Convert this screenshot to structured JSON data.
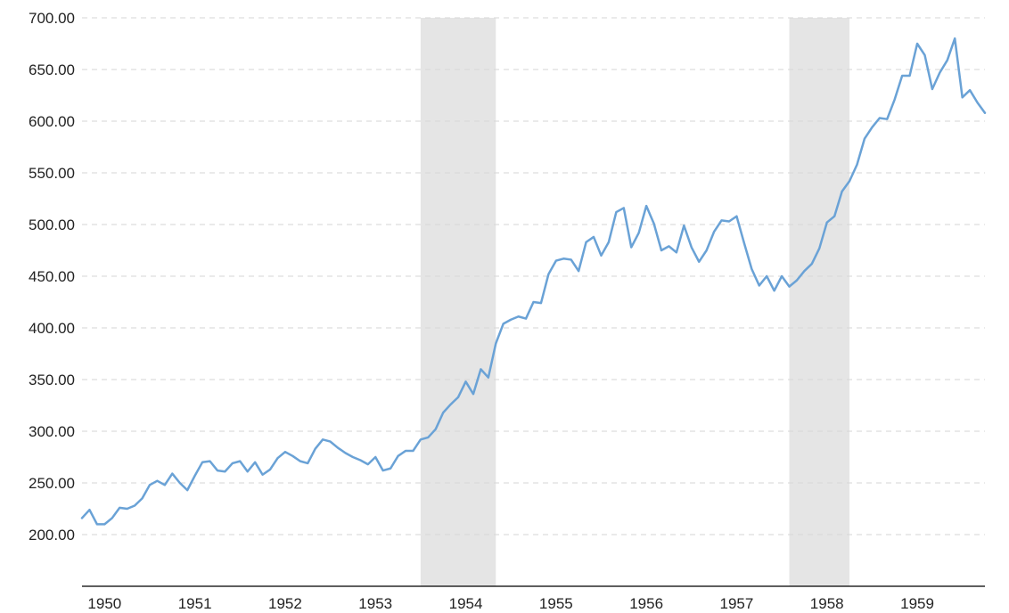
{
  "chart_data": {
    "type": "line",
    "title": "",
    "xlabel": "",
    "ylabel": "",
    "ylim": [
      150,
      700
    ],
    "xlim": [
      "1949-10",
      "1959-10"
    ],
    "y_ticks": [
      "200.00",
      "250.00",
      "300.00",
      "350.00",
      "400.00",
      "450.00",
      "500.00",
      "550.00",
      "600.00",
      "650.00",
      "700.00"
    ],
    "x_ticks": [
      "1950",
      "1951",
      "1952",
      "1953",
      "1954",
      "1955",
      "1956",
      "1957",
      "1958",
      "1959"
    ],
    "grid": "horizontal dashed",
    "line_color": "#6aa2d6",
    "shade_color": "#e5e5e5",
    "recessions": [
      {
        "start": "1953-07",
        "end": "1954-05"
      },
      {
        "start": "1957-08",
        "end": "1958-04"
      }
    ],
    "series": [
      {
        "x": [
          "1949-10",
          "1949-11",
          "1949-12",
          "1950-01",
          "1950-02",
          "1950-03",
          "1950-04",
          "1950-05",
          "1950-06",
          "1950-07",
          "1950-08",
          "1950-09",
          "1950-10",
          "1950-11",
          "1950-12",
          "1951-01",
          "1951-02",
          "1951-03",
          "1951-04",
          "1951-05",
          "1951-06",
          "1951-07",
          "1951-08",
          "1951-09",
          "1951-10",
          "1951-11",
          "1951-12",
          "1952-01",
          "1952-02",
          "1952-03",
          "1952-04",
          "1952-05",
          "1952-06",
          "1952-07",
          "1952-08",
          "1952-09",
          "1952-10",
          "1952-11",
          "1952-12",
          "1953-01",
          "1953-02",
          "1953-03",
          "1953-04",
          "1953-05",
          "1953-06",
          "1953-07",
          "1953-08",
          "1953-09",
          "1953-10",
          "1953-11",
          "1953-12",
          "1954-01",
          "1954-02",
          "1954-03",
          "1954-04",
          "1954-05",
          "1954-06",
          "1954-07",
          "1954-08",
          "1954-09",
          "1954-10",
          "1954-11",
          "1954-12",
          "1955-01",
          "1955-02",
          "1955-03",
          "1955-04",
          "1955-05",
          "1955-06",
          "1955-07",
          "1955-08",
          "1955-09",
          "1955-10",
          "1955-11",
          "1955-12",
          "1956-01",
          "1956-02",
          "1956-03",
          "1956-04",
          "1956-05",
          "1956-06",
          "1956-07",
          "1956-08",
          "1956-09",
          "1956-10",
          "1956-11",
          "1956-12",
          "1957-01",
          "1957-02",
          "1957-03",
          "1957-04",
          "1957-05",
          "1957-06",
          "1957-07",
          "1957-08",
          "1957-09",
          "1957-10",
          "1957-11",
          "1957-12",
          "1958-01",
          "1958-02",
          "1958-03",
          "1958-04",
          "1958-05",
          "1958-06",
          "1958-07",
          "1958-08",
          "1958-09",
          "1958-10",
          "1958-11",
          "1958-12",
          "1959-01",
          "1959-02",
          "1959-03",
          "1959-04",
          "1959-05",
          "1959-06",
          "1959-07",
          "1959-08",
          "1959-09",
          "1959-10"
        ],
        "values": [
          216,
          224,
          210,
          210,
          216,
          226,
          225,
          228,
          235,
          248,
          252,
          248,
          259,
          250,
          243,
          257,
          270,
          271,
          262,
          261,
          269,
          271,
          261,
          270,
          258,
          263,
          274,
          280,
          276,
          271,
          269,
          283,
          292,
          290,
          284,
          279,
          275,
          272,
          268,
          275,
          262,
          264,
          276,
          281,
          281,
          292,
          294,
          302,
          318,
          326,
          333,
          348,
          336,
          360,
          352,
          385,
          404,
          408,
          411,
          409,
          425,
          424,
          452,
          465,
          467,
          466,
          455,
          483,
          488,
          470,
          483,
          512,
          516,
          478,
          492,
          518,
          501,
          475,
          479,
          473,
          499,
          478,
          464,
          475,
          493,
          504,
          503,
          508,
          482,
          457,
          441,
          450,
          436,
          450,
          440,
          446,
          455,
          462,
          477,
          502,
          508,
          532,
          542,
          558,
          583,
          594,
          603,
          602,
          621,
          644,
          644,
          675,
          664,
          631,
          647,
          659,
          680,
          623,
          630,
          618,
          608
        ]
      }
    ]
  }
}
